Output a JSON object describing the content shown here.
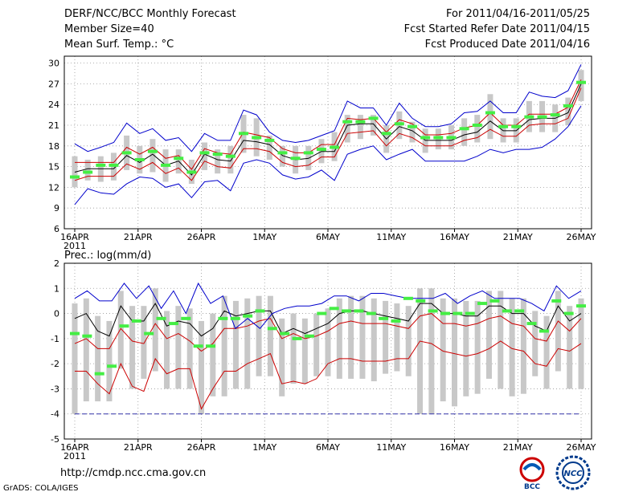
{
  "header": {
    "title": "DERF/NCC/BCC Monthly Forecast",
    "member_size": "Member Size=40",
    "variable": "Mean Surf. Temp.: °C",
    "forecast_period": "For 2011/04/16-2011/05/25",
    "started_refer": "Fcst Started Refer Date 2011/04/15",
    "produced": "Fcst Produced Date 2011/04/16"
  },
  "footer": {
    "url": "http://cmdp.ncc.cma.gov.cn",
    "credit": "GrADS: COLA/IGES",
    "logo1_text": "BCC",
    "logo2_text": "NCC"
  },
  "colors": {
    "gray_bar": "#c8c8c8",
    "green_mark": "#44ee44",
    "blue": "#0000cc",
    "red": "#cc0000",
    "black": "#000000",
    "dashed_floor": "#3333aa"
  },
  "chart_data": [
    {
      "type": "line",
      "title": "Mean Surf. Temp.: °C",
      "ylim": [
        6,
        31
      ],
      "yticks": [
        6,
        9,
        12,
        15,
        18,
        21,
        24,
        27,
        30
      ],
      "xlim": [
        0,
        40
      ],
      "xticks": [
        {
          "day": 1,
          "label": "16APR",
          "sub": "2011"
        },
        {
          "day": 6,
          "label": "21APR"
        },
        {
          "day": 11,
          "label": "26APR"
        },
        {
          "day": 16,
          "label": "1MAY"
        },
        {
          "day": 21,
          "label": "6MAY"
        },
        {
          "day": 26,
          "label": "11MAY"
        },
        {
          "day": 31,
          "label": "16MAY"
        },
        {
          "day": 36,
          "label": "21MAY"
        },
        {
          "day": 41,
          "label": "26MAY"
        }
      ],
      "series": [
        {
          "name": "max",
          "color": "blue",
          "values": [
            18.3,
            17.2,
            17.8,
            18.5,
            21.3,
            19.8,
            20.5,
            18.8,
            19.2,
            17.2,
            19.8,
            18.8,
            18.8,
            23.2,
            22.5,
            20.0,
            18.8,
            18.5,
            18.8,
            19.5,
            20.2,
            24.5,
            23.5,
            23.5,
            21.0,
            24.2,
            22.0,
            20.8,
            20.8,
            21.2,
            22.8,
            23.0,
            24.5,
            22.8,
            22.8,
            25.8,
            25.2,
            25.0,
            26.0,
            29.8
          ]
        },
        {
          "name": "upper",
          "color": "red",
          "values": [
            15.6,
            15.6,
            15.6,
            15.6,
            17.8,
            16.8,
            17.8,
            16.2,
            16.6,
            14.6,
            17.6,
            17.0,
            16.8,
            20.0,
            19.6,
            19.2,
            17.6,
            17.0,
            17.0,
            18.2,
            18.2,
            22.0,
            21.8,
            22.0,
            20.0,
            21.8,
            21.2,
            19.6,
            19.6,
            19.8,
            20.6,
            21.0,
            22.8,
            21.0,
            21.0,
            22.6,
            22.6,
            22.6,
            23.6,
            27.6
          ]
        },
        {
          "name": "mean",
          "color": "black",
          "values": [
            14.2,
            14.7,
            14.7,
            14.7,
            16.6,
            15.6,
            16.8,
            15.2,
            15.8,
            13.8,
            16.8,
            16.0,
            15.8,
            18.8,
            18.6,
            18.2,
            16.6,
            16.0,
            16.2,
            17.2,
            17.2,
            21.0,
            21.2,
            21.2,
            19.0,
            20.8,
            20.2,
            18.8,
            18.8,
            18.8,
            19.6,
            20.0,
            21.6,
            20.2,
            20.2,
            21.8,
            22.0,
            22.0,
            22.8,
            27.0
          ]
        },
        {
          "name": "lower",
          "color": "red",
          "values": [
            13.0,
            13.6,
            13.6,
            13.6,
            15.4,
            14.6,
            15.6,
            14.0,
            14.8,
            13.0,
            15.8,
            15.0,
            14.8,
            17.6,
            17.6,
            17.2,
            15.6,
            15.0,
            15.2,
            16.4,
            16.4,
            19.8,
            20.0,
            20.2,
            18.0,
            19.8,
            19.2,
            18.0,
            18.0,
            18.0,
            18.8,
            19.2,
            20.4,
            19.4,
            19.4,
            21.0,
            21.2,
            21.2,
            22.0,
            26.4
          ]
        },
        {
          "name": "min",
          "color": "blue",
          "values": [
            9.5,
            11.8,
            11.2,
            11.0,
            12.5,
            13.5,
            13.3,
            12.0,
            12.5,
            10.5,
            12.8,
            13.0,
            11.5,
            15.5,
            16.0,
            15.5,
            13.8,
            13.2,
            13.5,
            14.5,
            13.0,
            16.8,
            17.5,
            18.0,
            16.0,
            16.8,
            17.5,
            15.8,
            15.8,
            15.8,
            15.8,
            16.5,
            17.5,
            17.0,
            17.5,
            17.5,
            17.8,
            19.0,
            20.8,
            23.8
          ]
        },
        {
          "name": "ensemble_box_low",
          "color": "gray_bar",
          "values": [
            12.0,
            13.0,
            12.8,
            13.0,
            14.5,
            14.0,
            14.2,
            12.8,
            14.0,
            12.5,
            14.5,
            14.0,
            14.0,
            17.0,
            16.5,
            16.0,
            15.0,
            14.0,
            14.5,
            15.5,
            15.8,
            18.5,
            19.0,
            19.5,
            17.0,
            19.0,
            18.5,
            17.0,
            17.5,
            17.5,
            18.0,
            18.5,
            19.0,
            18.5,
            18.5,
            20.0,
            20.0,
            20.0,
            21.0,
            24.5
          ]
        },
        {
          "name": "ensemble_box_high",
          "color": "gray_bar",
          "values": [
            16.5,
            16.0,
            16.5,
            17.0,
            19.5,
            18.0,
            19.0,
            17.5,
            17.5,
            16.0,
            18.5,
            17.5,
            18.0,
            22.5,
            22.0,
            19.5,
            18.0,
            18.0,
            18.0,
            19.0,
            20.0,
            22.5,
            22.5,
            22.5,
            21.0,
            23.0,
            21.5,
            20.5,
            20.5,
            21.0,
            22.0,
            22.5,
            25.5,
            22.0,
            22.0,
            24.5,
            24.5,
            24.0,
            25.0,
            29.0
          ]
        },
        {
          "name": "ensemble_mode",
          "color": "green_mark",
          "values": [
            13.5,
            14.2,
            15.2,
            15.2,
            17.0,
            16.0,
            17.2,
            15.2,
            16.2,
            14.2,
            17.0,
            16.8,
            16.5,
            19.8,
            19.2,
            18.8,
            17.0,
            16.2,
            17.0,
            17.5,
            17.8,
            21.5,
            21.5,
            22.0,
            19.8,
            21.2,
            20.8,
            19.2,
            19.2,
            19.2,
            20.5,
            21.0,
            22.8,
            20.8,
            20.8,
            22.2,
            22.2,
            22.5,
            23.8,
            27.2
          ]
        }
      ]
    },
    {
      "type": "line",
      "title": "Prec.: log(mm/d)",
      "ylim": [
        -5,
        2
      ],
      "yticks": [
        -5,
        -4,
        -3,
        -2,
        -1,
        0,
        1,
        2
      ],
      "xlim": [
        0,
        40
      ],
      "floor_line": -4,
      "xticks": [
        {
          "day": 1,
          "label": "16APR",
          "sub": "2011"
        },
        {
          "day": 6,
          "label": "21APR"
        },
        {
          "day": 11,
          "label": "26APR"
        },
        {
          "day": 16,
          "label": "1MAY"
        },
        {
          "day": 21,
          "label": "6MAY"
        },
        {
          "day": 26,
          "label": "11MAY"
        },
        {
          "day": 31,
          "label": "16MAY"
        },
        {
          "day": 36,
          "label": "21MAY"
        },
        {
          "day": 41,
          "label": "26MAY"
        }
      ],
      "series": [
        {
          "name": "max",
          "color": "blue",
          "values": [
            0.6,
            0.9,
            0.5,
            0.5,
            1.2,
            0.6,
            1.1,
            0.2,
            0.9,
            0.0,
            1.2,
            0.4,
            0.7,
            -0.6,
            -0.2,
            -0.6,
            0.0,
            0.2,
            0.3,
            0.3,
            0.4,
            0.7,
            0.7,
            0.5,
            0.8,
            0.8,
            0.7,
            0.6,
            0.6,
            0.6,
            0.8,
            0.4,
            0.7,
            0.9,
            0.6,
            0.6,
            0.6,
            0.4,
            0.1,
            1.1,
            0.6,
            0.9
          ]
        },
        {
          "name": "upper",
          "color": "black",
          "values": [
            -0.2,
            0.0,
            -0.7,
            -0.9,
            0.3,
            -0.3,
            -0.3,
            0.4,
            -0.5,
            -0.3,
            -0.4,
            -0.9,
            -0.6,
            0.1,
            -0.1,
            0.0,
            0.1,
            0.1,
            -0.8,
            -0.6,
            -0.8,
            -0.6,
            -0.4,
            0.0,
            0.1,
            0.1,
            0.0,
            -0.1,
            -0.2,
            -0.3,
            0.4,
            0.4,
            0.0,
            0.0,
            -0.1,
            -0.1,
            0.3,
            0.3,
            0.0,
            0.0,
            -0.5,
            -0.7,
            0.3,
            -0.3,
            0.0
          ]
        },
        {
          "name": "mid",
          "color": "red",
          "values": [
            -1.2,
            -1.0,
            -1.4,
            -1.4,
            -0.6,
            -1.1,
            -1.2,
            -0.4,
            -1.0,
            -0.8,
            -1.1,
            -1.5,
            -1.2,
            -0.6,
            -0.6,
            -0.5,
            -0.3,
            -0.2,
            -1.0,
            -0.8,
            -1.0,
            -0.9,
            -0.7,
            -0.4,
            -0.3,
            -0.4,
            -0.4,
            -0.4,
            -0.5,
            -0.6,
            -0.1,
            0.0,
            -0.4,
            -0.4,
            -0.5,
            -0.4,
            -0.2,
            -0.1,
            -0.4,
            -0.5,
            -1.0,
            -1.1,
            -0.3,
            -0.7,
            -0.2
          ]
        },
        {
          "name": "lower",
          "color": "red",
          "values": [
            -2.3,
            -2.3,
            -2.8,
            -3.2,
            -2.0,
            -2.9,
            -3.1,
            -1.8,
            -2.4,
            -2.2,
            -2.2,
            -3.8,
            -3.0,
            -2.3,
            -2.3,
            -2.0,
            -1.8,
            -1.6,
            -2.8,
            -2.7,
            -2.8,
            -2.6,
            -2.0,
            -1.8,
            -1.8,
            -1.9,
            -1.9,
            -1.9,
            -1.8,
            -1.8,
            -1.1,
            -1.2,
            -1.5,
            -1.6,
            -1.7,
            -1.6,
            -1.4,
            -1.1,
            -1.4,
            -1.5,
            -2.0,
            -2.1,
            -1.4,
            -1.5,
            -1.2
          ]
        },
        {
          "name": "ensemble_box_low",
          "color": "gray_bar",
          "values": [
            -4.0,
            -3.5,
            -3.5,
            -3.5,
            -2.2,
            -3.0,
            -2.6,
            -2.3,
            -3.0,
            -3.0,
            -3.0,
            -4.0,
            -3.3,
            -3.3,
            -3.0,
            -3.0,
            -2.5,
            -2.5,
            -3.3,
            -2.8,
            -2.8,
            -2.5,
            -2.5,
            -2.6,
            -2.6,
            -2.6,
            -2.7,
            -2.4,
            -2.3,
            -2.5,
            -4.0,
            -4.0,
            -3.5,
            -3.7,
            -3.3,
            -3.2,
            -2.6,
            -3.0,
            -3.3,
            -3.2,
            -2.5,
            -3.0,
            -2.3,
            -3.0,
            -3.0
          ]
        },
        {
          "name": "ensemble_mode",
          "color": "green_mark",
          "values": [
            -0.8,
            -0.9,
            -2.4,
            -2.1,
            -0.5,
            -0.3,
            -0.8,
            -0.2,
            -0.4,
            -0.2,
            -1.3,
            -1.3,
            -0.2,
            -0.2,
            -0.1,
            0.1,
            -0.6,
            -0.8,
            -1.0,
            -0.9,
            0.0,
            0.2,
            0.1,
            0.1,
            0.0,
            -0.2,
            -0.3,
            0.6,
            0.5,
            0.1,
            0.0,
            0.0,
            0.0,
            0.4,
            0.5,
            0.1,
            0.1,
            -0.4,
            -0.7,
            0.5,
            0.0,
            0.3
          ]
        }
      ]
    }
  ]
}
